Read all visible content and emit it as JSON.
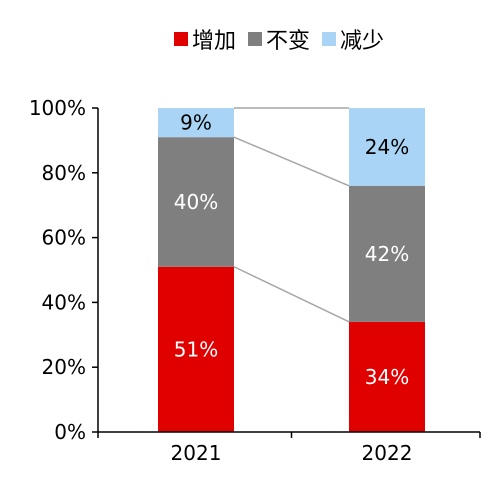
{
  "chart_data": {
    "type": "bar",
    "stacked": true,
    "normalized": true,
    "categories": [
      "2021",
      "2022"
    ],
    "series": [
      {
        "name": "增加",
        "values": [
          51,
          34
        ],
        "color": "#e00000",
        "label_color": "#ffffff"
      },
      {
        "name": "不变",
        "values": [
          40,
          42
        ],
        "color": "#7f7f7f",
        "label_color": "#ffffff"
      },
      {
        "name": "减少",
        "values": [
          9,
          24
        ],
        "color": "#a9d4f5",
        "label_color": "#000000"
      }
    ],
    "data_labels": [
      [
        "51%",
        "34%"
      ],
      [
        "40%",
        "42%"
      ],
      [
        "9%",
        "24%"
      ]
    ],
    "yticks": [
      "0%",
      "20%",
      "40%",
      "60%",
      "80%",
      "100%"
    ],
    "ylim": [
      0,
      100
    ],
    "connector_lines": true,
    "connector_color": "#a6a6a6",
    "legend_position": "top",
    "grid": false
  }
}
